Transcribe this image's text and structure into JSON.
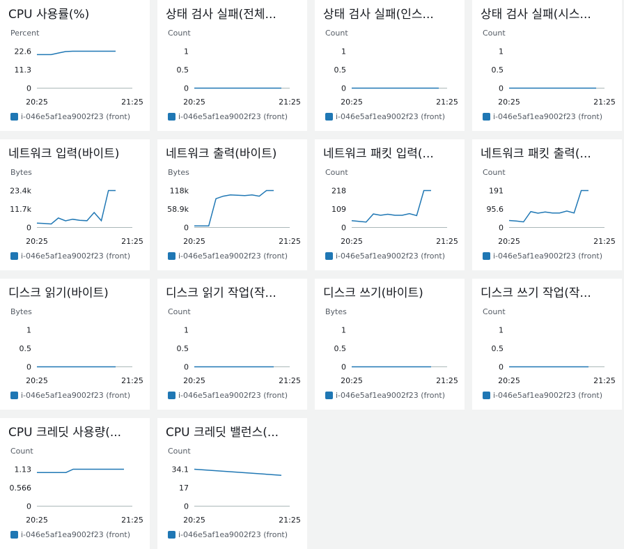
{
  "legend_label": "i-046e5af1ea9002f23 (front)",
  "colors": {
    "series": "#1f77b4",
    "axis": "#aab7b8",
    "background": "#f2f3f3",
    "card": "#ffffff"
  },
  "charts": [
    {
      "title": "CPU 사용률(%)",
      "unit": "Percent",
      "y_ticks": [
        "22.6",
        "11.3",
        "0"
      ],
      "x_ticks": [
        "20:25",
        "21:25"
      ],
      "chart_data": {
        "type": "line",
        "x": [
          "20:25",
          "20:30",
          "20:35",
          "20:40",
          "20:45",
          "20:50",
          "20:55",
          "21:00",
          "21:05",
          "21:10",
          "21:15",
          "21:20"
        ],
        "ylim": [
          0,
          22.6
        ],
        "series": [
          {
            "name": "i-046e5af1ea9002f23 (front)",
            "values": [
              20.5,
              20.5,
              20.5,
              21.5,
              22.4,
              22.6,
              22.6,
              22.6,
              22.6,
              22.6,
              22.6,
              22.6
            ]
          }
        ]
      }
    },
    {
      "title": "상태 검사 실패(전체...",
      "unit": "Count",
      "y_ticks": [
        "1",
        "0.5",
        "0"
      ],
      "x_ticks": [
        "20:25",
        "21:25"
      ],
      "chart_data": {
        "type": "line",
        "x": [
          "20:25",
          "20:30",
          "20:35",
          "20:40",
          "20:45",
          "20:50",
          "20:55",
          "21:00",
          "21:05",
          "21:10",
          "21:15",
          "21:20"
        ],
        "ylim": [
          0,
          1
        ],
        "series": [
          {
            "name": "i-046e5af1ea9002f23 (front)",
            "values": [
              0,
              0,
              0,
              0,
              0,
              0,
              0,
              0,
              0,
              0,
              0,
              0
            ]
          }
        ]
      }
    },
    {
      "title": "상태 검사 실패(인스...",
      "unit": "Count",
      "y_ticks": [
        "1",
        "0.5",
        "0"
      ],
      "x_ticks": [
        "20:25",
        "21:25"
      ],
      "chart_data": {
        "type": "line",
        "x": [
          "20:25",
          "20:30",
          "20:35",
          "20:40",
          "20:45",
          "20:50",
          "20:55",
          "21:00",
          "21:05",
          "21:10",
          "21:15",
          "21:20"
        ],
        "ylim": [
          0,
          1
        ],
        "series": [
          {
            "name": "i-046e5af1ea9002f23 (front)",
            "values": [
              0,
              0,
              0,
              0,
              0,
              0,
              0,
              0,
              0,
              0,
              0,
              0
            ]
          }
        ]
      }
    },
    {
      "title": "상태 검사 실패(시스...",
      "unit": "Count",
      "y_ticks": [
        "1",
        "0.5",
        "0"
      ],
      "x_ticks": [
        "20:25",
        "21:25"
      ],
      "chart_data": {
        "type": "line",
        "x": [
          "20:25",
          "20:30",
          "20:35",
          "20:40",
          "20:45",
          "20:50",
          "20:55",
          "21:00",
          "21:05",
          "21:10",
          "21:15",
          "21:20"
        ],
        "ylim": [
          0,
          1
        ],
        "series": [
          {
            "name": "i-046e5af1ea9002f23 (front)",
            "values": [
              0,
              0,
              0,
              0,
              0,
              0,
              0,
              0,
              0,
              0,
              0,
              0
            ]
          }
        ]
      }
    },
    {
      "title": "네트워크 입력(바이트)",
      "unit": "Bytes",
      "y_ticks": [
        "23.4k",
        "11.7k",
        "0"
      ],
      "x_ticks": [
        "20:25",
        "21:25"
      ],
      "chart_data": {
        "type": "line",
        "x": [
          "20:25",
          "20:30",
          "20:35",
          "20:40",
          "20:45",
          "20:50",
          "20:55",
          "21:00",
          "21:05",
          "21:10",
          "21:15",
          "21:20"
        ],
        "ylim": [
          0,
          23400
        ],
        "series": [
          {
            "name": "i-046e5af1ea9002f23 (front)",
            "values": [
              2800,
              2500,
              2200,
              6000,
              4200,
              5200,
              4500,
              4300,
              9500,
              4300,
              23400,
              23400
            ]
          }
        ]
      }
    },
    {
      "title": "네트워크 출력(바이트)",
      "unit": "Bytes",
      "y_ticks": [
        "118k",
        "58.9k",
        "0"
      ],
      "x_ticks": [
        "20:25",
        "21:25"
      ],
      "chart_data": {
        "type": "line",
        "x": [
          "20:25",
          "20:30",
          "20:35",
          "20:40",
          "20:45",
          "20:50",
          "20:55",
          "21:00",
          "21:05",
          "21:10",
          "21:15",
          "21:20"
        ],
        "ylim": [
          0,
          118000
        ],
        "series": [
          {
            "name": "i-046e5af1ea9002f23 (front)",
            "values": [
              5000,
              5000,
              5000,
              92000,
              100000,
              104000,
              103000,
              102000,
              104000,
              100000,
              118000,
              118000
            ]
          }
        ]
      }
    },
    {
      "title": "네트워크 패킷 입력(...",
      "unit": "Count",
      "y_ticks": [
        "218",
        "109",
        "0"
      ],
      "x_ticks": [
        "20:25",
        "21:25"
      ],
      "chart_data": {
        "type": "line",
        "x": [
          "20:25",
          "20:30",
          "20:35",
          "20:40",
          "20:45",
          "20:50",
          "20:55",
          "21:00",
          "21:05",
          "21:10",
          "21:15",
          "21:20"
        ],
        "ylim": [
          0,
          218
        ],
        "series": [
          {
            "name": "i-046e5af1ea9002f23 (front)",
            "values": [
              40,
              36,
              32,
              80,
              72,
              78,
              72,
              72,
              82,
              70,
              218,
              218
            ]
          }
        ]
      }
    },
    {
      "title": "네트워크 패킷 출력(...",
      "unit": "Count",
      "y_ticks": [
        "191",
        "95.6",
        "0"
      ],
      "x_ticks": [
        "20:25",
        "21:25"
      ],
      "chart_data": {
        "type": "line",
        "x": [
          "20:25",
          "20:30",
          "20:35",
          "20:40",
          "20:45",
          "20:50",
          "20:55",
          "21:00",
          "21:05",
          "21:10",
          "21:15",
          "21:20"
        ],
        "ylim": [
          0,
          191
        ],
        "series": [
          {
            "name": "i-046e5af1ea9002f23 (front)",
            "values": [
              36,
              33,
              29,
              82,
              74,
              80,
              75,
              75,
              85,
              75,
              191,
              191
            ]
          }
        ]
      }
    },
    {
      "title": "디스크 읽기(바이트)",
      "unit": "Bytes",
      "y_ticks": [
        "1",
        "0.5",
        "0"
      ],
      "x_ticks": [
        "20:25",
        "21:25"
      ],
      "chart_data": {
        "type": "line",
        "x": [
          "20:25",
          "20:30",
          "20:35",
          "20:40",
          "20:45",
          "20:50",
          "20:55",
          "21:00",
          "21:05",
          "21:10",
          "21:15",
          "21:20"
        ],
        "ylim": [
          0,
          1
        ],
        "series": [
          {
            "name": "i-046e5af1ea9002f23 (front)",
            "values": [
              0,
              0,
              0,
              0,
              0,
              0,
              0,
              0,
              0,
              0,
              0,
              0
            ]
          }
        ]
      }
    },
    {
      "title": "디스크 읽기 작업(작...",
      "unit": "Count",
      "y_ticks": [
        "1",
        "0.5",
        "0"
      ],
      "x_ticks": [
        "20:25",
        "21:25"
      ],
      "chart_data": {
        "type": "line",
        "x": [
          "20:25",
          "20:30",
          "20:35",
          "20:40",
          "20:45",
          "20:50",
          "20:55",
          "21:00",
          "21:05",
          "21:10",
          "21:15",
          "21:20"
        ],
        "ylim": [
          0,
          1
        ],
        "series": [
          {
            "name": "i-046e5af1ea9002f23 (front)",
            "values": [
              0,
              0,
              0,
              0,
              0,
              0,
              0,
              0,
              0,
              0,
              0,
              0
            ]
          }
        ]
      }
    },
    {
      "title": "디스크 쓰기(바이트)",
      "unit": "Bytes",
      "y_ticks": [
        "1",
        "0.5",
        "0"
      ],
      "x_ticks": [
        "20:25",
        "21:25"
      ],
      "chart_data": {
        "type": "line",
        "x": [
          "20:25",
          "20:30",
          "20:35",
          "20:40",
          "20:45",
          "20:50",
          "20:55",
          "21:00",
          "21:05",
          "21:10",
          "21:15",
          "21:20"
        ],
        "ylim": [
          0,
          1
        ],
        "series": [
          {
            "name": "i-046e5af1ea9002f23 (front)",
            "values": [
              0,
              0,
              0,
              0,
              0,
              0,
              0,
              0,
              0,
              0,
              0,
              0
            ]
          }
        ]
      }
    },
    {
      "title": "디스크 쓰기 작업(작...",
      "unit": "Count",
      "y_ticks": [
        "1",
        "0.5",
        "0"
      ],
      "x_ticks": [
        "20:25",
        "21:25"
      ],
      "chart_data": {
        "type": "line",
        "x": [
          "20:25",
          "20:30",
          "20:35",
          "20:40",
          "20:45",
          "20:50",
          "20:55",
          "21:00",
          "21:05",
          "21:10",
          "21:15",
          "21:20"
        ],
        "ylim": [
          0,
          1
        ],
        "series": [
          {
            "name": "i-046e5af1ea9002f23 (front)",
            "values": [
              0,
              0,
              0,
              0,
              0,
              0,
              0,
              0,
              0,
              0,
              0,
              0
            ]
          }
        ]
      }
    },
    {
      "title": "CPU 크레딧 사용량(...",
      "unit": "Count",
      "y_ticks": [
        "1.13",
        "0.566",
        "0"
      ],
      "x_ticks": [
        "20:25",
        "21:25"
      ],
      "chart_data": {
        "type": "line",
        "x": [
          "20:25",
          "20:30",
          "20:35",
          "20:40",
          "20:45",
          "20:50",
          "20:55",
          "21:00",
          "21:05",
          "21:10",
          "21:15",
          "21:20",
          "21:25"
        ],
        "ylim": [
          0,
          1.13
        ],
        "series": [
          {
            "name": "i-046e5af1ea9002f23 (front)",
            "values": [
              1.03,
              1.03,
              1.03,
              1.03,
              1.03,
              1.13,
              1.13,
              1.13,
              1.13,
              1.13,
              1.13,
              1.13,
              1.13
            ]
          }
        ]
      }
    },
    {
      "title": "CPU 크레딧 밸런스(...",
      "unit": "Count",
      "y_ticks": [
        "34.1",
        "17",
        "0"
      ],
      "x_ticks": [
        "20:25",
        "21:25"
      ],
      "chart_data": {
        "type": "line",
        "x": [
          "20:25",
          "21:20"
        ],
        "ylim": [
          0,
          34.1
        ],
        "series": [
          {
            "name": "i-046e5af1ea9002f23 (front)",
            "values": [
              34.1,
              28.5
            ]
          }
        ]
      }
    }
  ]
}
